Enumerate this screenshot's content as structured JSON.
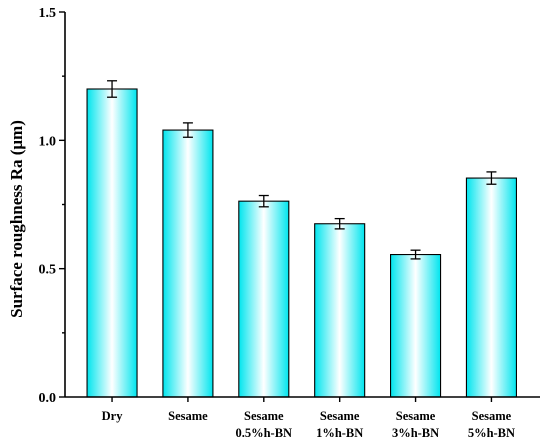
{
  "chart_data": {
    "type": "bar",
    "categories": [
      [
        "Dry"
      ],
      [
        "Sesame"
      ],
      [
        "Sesame",
        "0.5%h-BN"
      ],
      [
        "Sesame",
        "1%h-BN"
      ],
      [
        "Sesame",
        "3%h-BN"
      ],
      [
        "Sesame",
        "5%h-BN"
      ]
    ],
    "values": [
      1.2,
      1.04,
      0.763,
      0.675,
      0.555,
      0.853
    ],
    "errors": [
      0.032,
      0.028,
      0.022,
      0.02,
      0.017,
      0.024
    ],
    "ylabel": "Surface roughness Ra (μm)",
    "xlabel": "",
    "ylim": [
      0.0,
      1.5
    ],
    "yticks": [
      "0.0",
      "0.5",
      "1.0",
      "1.5"
    ],
    "bar_color": "#00E5EE",
    "bar_highlight": "#ffffff",
    "grid": false
  }
}
